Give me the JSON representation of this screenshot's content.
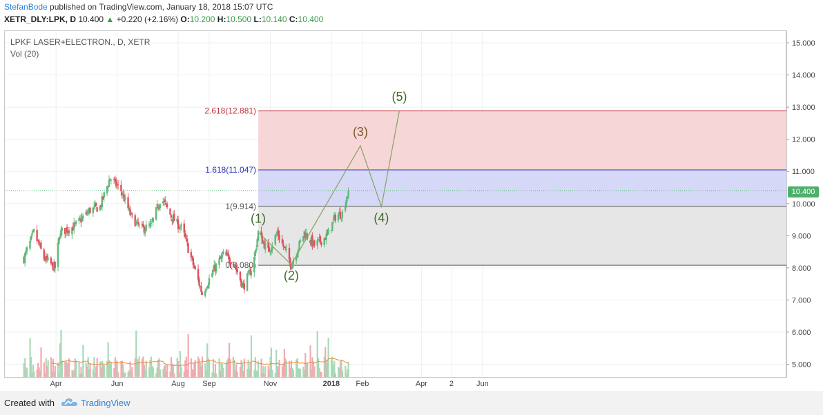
{
  "header": {
    "author": "StefanBode",
    "published": " published on TradingView.com, January 18, 2018 15:07 UTC"
  },
  "ohlc": {
    "symbol": "XETR_DLY:LPK, D",
    "last": "10.400",
    "arrow": "▲",
    "change": "+0.220 (+2.16%)",
    "o_label": "O:",
    "o": "10.200",
    "h_label": "H:",
    "h": "10.500",
    "l_label": "L:",
    "l": "10.140",
    "c_label": "C:",
    "c": "10.400"
  },
  "legend": {
    "title": "LPKF LASER+ELECTRON., D, XETR",
    "volume": "Vol (20)"
  },
  "price_tag": "10.400",
  "footer": {
    "created": "Created with",
    "brand": "TradingView"
  },
  "colors": {
    "up": "#5fb87a",
    "down": "#e0505a",
    "fib_red_zone": "#f7d6d8",
    "fib_blue_zone": "#d6d8f7",
    "fib_grey_zone": "#e6e6e6",
    "wave_line": "#8aa66a",
    "wave_label": "#3d6a2a",
    "volume_ma": "#f0883a"
  },
  "chart_data": {
    "type": "candlestick",
    "y_axis_ticks": [
      "15.000",
      "14.000",
      "13.000",
      "12.000",
      "11.000",
      "10.000",
      "9.000",
      "8.000",
      "7.000",
      "6.000",
      "5.000"
    ],
    "ylim": [
      4.6,
      15.3
    ],
    "x_axis_ticks": [
      "Apr",
      "Jun",
      "Aug",
      "Sep",
      "Nov",
      "2018",
      "Feb",
      "Apr",
      "2",
      "Jun"
    ],
    "last_price": 10.4,
    "price_path": [
      {
        "date": "2017-02-28",
        "close": 8.3
      },
      {
        "date": "2017-03-10",
        "close": 9.1
      },
      {
        "date": "2017-03-20",
        "close": 8.3
      },
      {
        "date": "2017-03-31",
        "close": 8.0
      },
      {
        "date": "2017-04-05",
        "close": 9.1
      },
      {
        "date": "2017-04-20",
        "close": 9.3
      },
      {
        "date": "2017-05-05",
        "close": 9.8
      },
      {
        "date": "2017-05-15",
        "close": 9.9
      },
      {
        "date": "2017-05-25",
        "close": 10.8
      },
      {
        "date": "2017-06-05",
        "close": 10.4
      },
      {
        "date": "2017-06-15",
        "close": 9.6
      },
      {
        "date": "2017-06-25",
        "close": 9.2
      },
      {
        "date": "2017-07-05",
        "close": 9.3
      },
      {
        "date": "2017-07-15",
        "close": 10.2
      },
      {
        "date": "2017-07-25",
        "close": 9.6
      },
      {
        "date": "2017-08-05",
        "close": 9.2
      },
      {
        "date": "2017-08-15",
        "close": 8.2
      },
      {
        "date": "2017-08-25",
        "close": 7.2
      },
      {
        "date": "2017-09-05",
        "close": 7.9
      },
      {
        "date": "2017-09-15",
        "close": 8.4
      },
      {
        "date": "2017-09-25",
        "close": 8.2
      },
      {
        "date": "2017-10-05",
        "close": 7.4
      },
      {
        "date": "2017-10-15",
        "close": 8.1
      },
      {
        "date": "2017-10-20",
        "close": 9.1
      },
      {
        "date": "2017-10-30",
        "close": 8.5
      },
      {
        "date": "2017-11-08",
        "close": 9.1
      },
      {
        "date": "2017-11-15",
        "close": 8.6
      },
      {
        "date": "2017-11-22",
        "close": 8.1
      },
      {
        "date": "2017-12-05",
        "close": 9.1
      },
      {
        "date": "2017-12-15",
        "close": 8.7
      },
      {
        "date": "2017-12-28",
        "close": 9.0
      },
      {
        "date": "2018-01-05",
        "close": 9.6
      },
      {
        "date": "2018-01-12",
        "close": 9.7
      },
      {
        "date": "2018-01-18",
        "close": 10.4
      }
    ],
    "fibonacci_levels": [
      {
        "label": "2.618(12.881)",
        "value": 12.881
      },
      {
        "label": "1.618(11.047)",
        "value": 11.047
      },
      {
        "label": "1(9.914)",
        "value": 9.914
      },
      {
        "label": "0(8.080)",
        "value": 8.08
      }
    ],
    "elliott_waves": [
      {
        "label": "(1)",
        "date": "2017-10-20",
        "price": 9.1
      },
      {
        "label": "(2)",
        "date": "2017-11-22",
        "price": 8.1
      },
      {
        "label": "(3)",
        "date": "2018-01-30",
        "price": 11.8
      },
      {
        "label": "(4)",
        "date": "2018-02-20",
        "price": 9.9
      },
      {
        "label": "(5)",
        "date": "2018-03-10",
        "price": 12.9
      }
    ],
    "volume": {
      "label": "Vol (20)",
      "ma_period": 20
    }
  }
}
